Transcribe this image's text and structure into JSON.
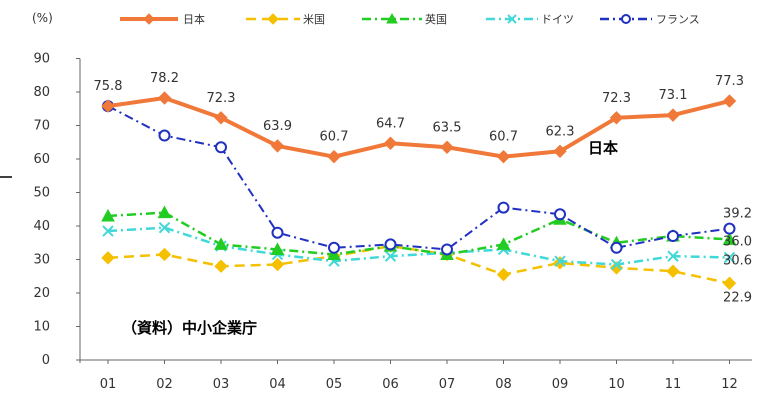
{
  "chart_data": {
    "type": "line",
    "ylabel": "(%)",
    "ylim": [
      0,
      90
    ],
    "yticks": [
      0,
      10,
      20,
      30,
      40,
      50,
      60,
      70,
      80,
      90
    ],
    "categories": [
      "01",
      "02",
      "03",
      "04",
      "05",
      "06",
      "07",
      "08",
      "09",
      "10",
      "11",
      "12"
    ],
    "legend_position": "top",
    "grid": false,
    "series": [
      {
        "name": "日本",
        "color": "#f07838",
        "style": "solid",
        "marker": "diamond",
        "values": [
          75.8,
          78.2,
          72.3,
          63.9,
          60.7,
          64.7,
          63.5,
          60.7,
          62.3,
          72.3,
          73.1,
          77.3
        ],
        "labels": [
          "75.8",
          "78.2",
          "72.3",
          "63.9",
          "60.7",
          "64.7",
          "63.5",
          "60.7",
          "62.3",
          "72.3",
          "73.1",
          "77.3"
        ]
      },
      {
        "name": "米国",
        "color": "#f5c000",
        "style": "dashed",
        "marker": "diamond",
        "values": [
          30.5,
          31.5,
          28,
          28.5,
          31,
          34,
          31.5,
          25.5,
          29,
          27.5,
          26.5,
          22.9
        ],
        "labels": [
          "",
          "",
          "",
          "",
          "",
          "",
          "",
          "",
          "",
          "",
          "",
          "22.9"
        ]
      },
      {
        "name": "英国",
        "color": "#22cc22",
        "style": "dashdot",
        "marker": "triangle",
        "values": [
          43,
          44,
          34.5,
          33,
          31.5,
          34,
          31.5,
          34.5,
          42,
          35,
          37,
          36.0
        ],
        "labels": [
          "",
          "",
          "",
          "",
          "",
          "",
          "",
          "",
          "",
          "",
          "",
          "36.0"
        ]
      },
      {
        "name": "ドイツ",
        "color": "#40d8d8",
        "style": "dashdot",
        "marker": "x",
        "values": [
          38.5,
          39.5,
          34,
          31.5,
          29.5,
          31,
          32,
          33,
          29.5,
          28.5,
          31,
          30.6
        ],
        "labels": [
          "",
          "",
          "",
          "",
          "",
          "",
          "",
          "",
          "",
          "",
          "",
          "30.6"
        ]
      },
      {
        "name": "フランス",
        "color": "#2030c0",
        "style": "dashdot",
        "marker": "circle",
        "values": [
          75.8,
          67,
          63.5,
          38,
          33.5,
          34.5,
          33,
          45.5,
          43.5,
          33.5,
          37,
          39.2
        ],
        "labels": [
          "",
          "",
          "",
          "",
          "",
          "",
          "",
          "",
          "",
          "",
          "",
          "39.2"
        ]
      }
    ],
    "annotations": {
      "series_callout": "日本",
      "source": "（資料）中小企業庁"
    }
  }
}
